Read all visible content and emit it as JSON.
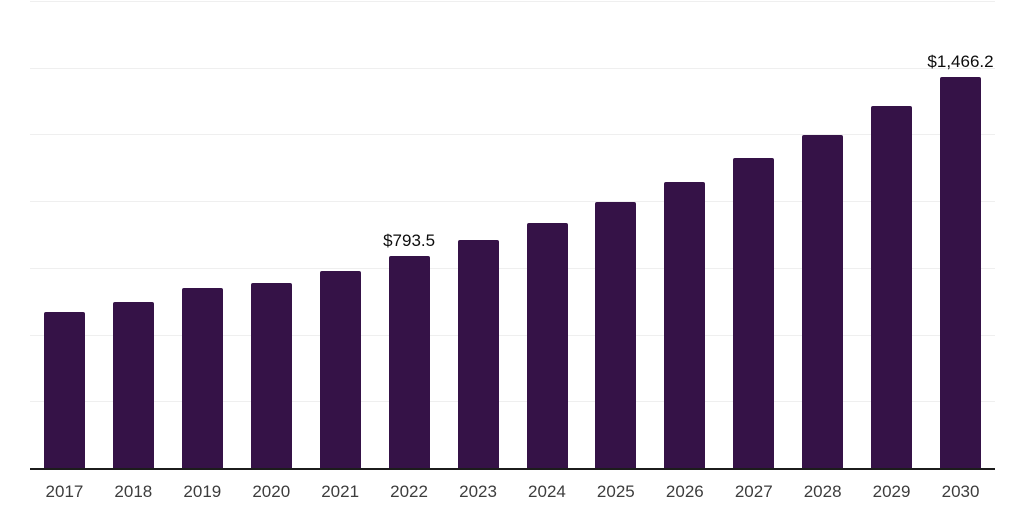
{
  "chart_data": {
    "type": "bar",
    "title": "",
    "xlabel": "",
    "ylabel": "",
    "categories": [
      "2017",
      "2018",
      "2019",
      "2020",
      "2021",
      "2022",
      "2023",
      "2024",
      "2025",
      "2026",
      "2027",
      "2028",
      "2029",
      "2030"
    ],
    "values": [
      583.2,
      622.1,
      674.5,
      693.3,
      738.3,
      793.5,
      855.0,
      918.5,
      997.0,
      1072.0,
      1162.0,
      1247.0,
      1357.0,
      1466.2
    ],
    "value_labels": [
      {
        "index": 5,
        "text": "$793.5"
      },
      {
        "index": 13,
        "text": "$1,466.2"
      }
    ],
    "ylim": [
      0,
      1750
    ],
    "gridline_step": 250,
    "grid": true,
    "legend": "none",
    "colors": {
      "bar": "#351247",
      "gridline": "#efefef",
      "axis_line": "#1c1c1c",
      "tick_label": "#3d3d3d",
      "value_label": "#0d0d0d",
      "background": "#ffffff"
    }
  }
}
